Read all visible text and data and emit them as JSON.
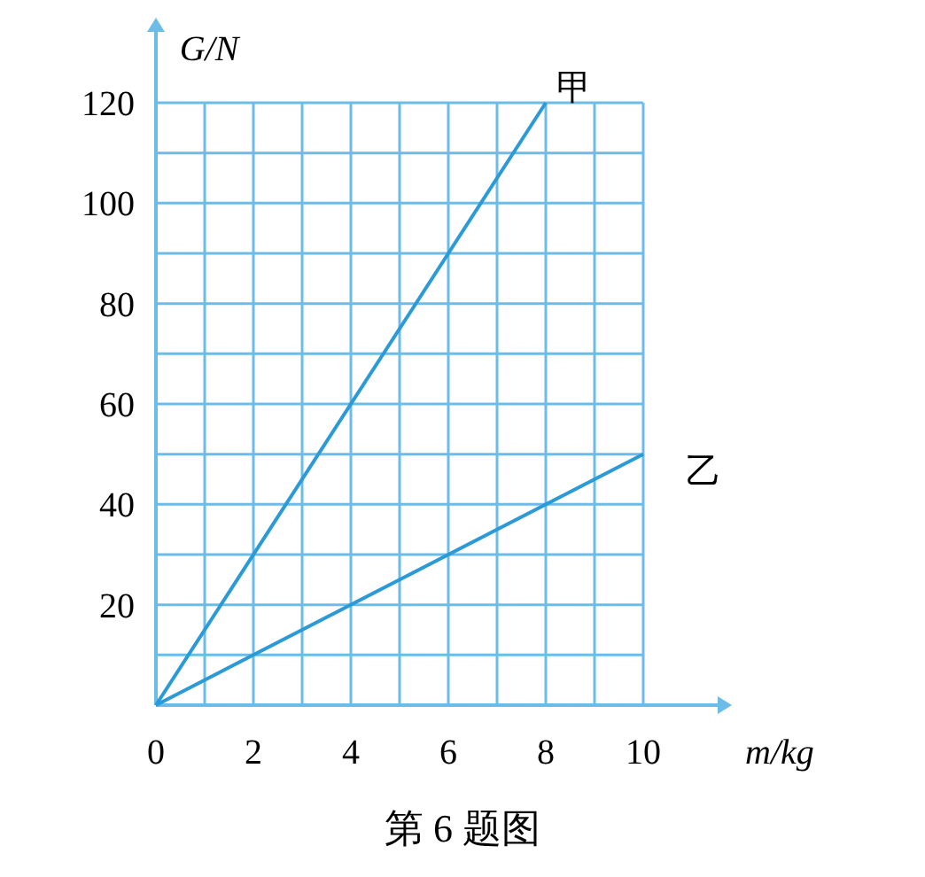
{
  "chart_data": {
    "type": "line",
    "xlabel": "m/kg",
    "ylabel": "G/N",
    "annotations": [
      "第 6 题图"
    ],
    "xlim": [
      0,
      10
    ],
    "ylim": [
      0,
      120
    ],
    "xticks": [
      0,
      {
        "value": 1,
        "label": null
      },
      2,
      {
        "value": 3,
        "label": null
      },
      4,
      {
        "value": 5,
        "label": null
      },
      6,
      {
        "value": 7,
        "label": null
      },
      8,
      {
        "value": 9,
        "label": null
      },
      10
    ],
    "yticks": [
      {
        "value": 10,
        "label": null
      },
      20,
      {
        "value": 30,
        "label": null
      },
      40,
      {
        "value": 50,
        "label": null
      },
      60,
      {
        "value": 70,
        "label": null
      },
      80,
      {
        "value": 90,
        "label": null
      },
      100,
      {
        "value": 110,
        "label": null
      },
      120
    ],
    "grid": true,
    "legend": false,
    "marker": "none",
    "line_style": "solid",
    "series": [
      {
        "name": "甲",
        "color": "#2b9ad6",
        "x": [
          0,
          8
        ],
        "values": [
          0,
          120
        ]
      },
      {
        "name": "乙",
        "color": "#2b9ad6",
        "x": [
          0,
          10
        ],
        "values": [
          0,
          50
        ]
      }
    ]
  }
}
